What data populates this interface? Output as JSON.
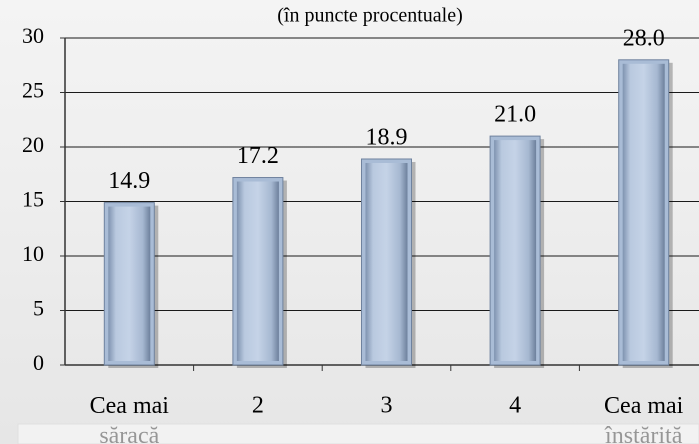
{
  "chart_data": {
    "type": "bar",
    "subtitle": "(în puncte procentuale)",
    "categories": [
      "Cea mai săracă",
      "2",
      "3",
      "4",
      "Cea mai înstărită"
    ],
    "values": [
      14.9,
      17.2,
      18.9,
      21.0,
      28.0
    ],
    "value_labels": [
      "14.9",
      "17.2",
      "18.9",
      "21.0",
      "28.0"
    ],
    "color": "#a9bcd6",
    "ylim": [
      0,
      30
    ],
    "yticks": [
      0,
      5,
      10,
      15,
      20,
      25,
      30
    ],
    "grid": true
  }
}
